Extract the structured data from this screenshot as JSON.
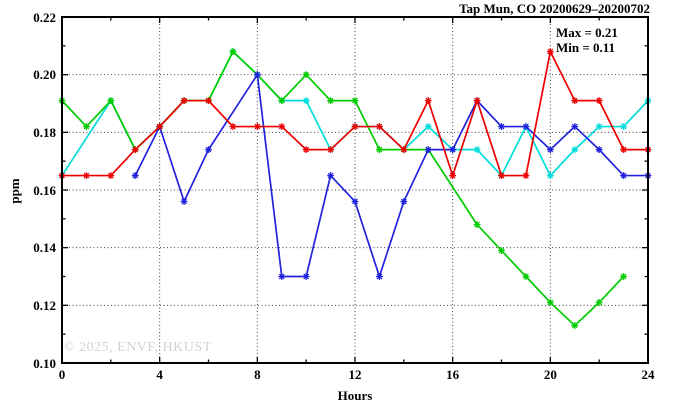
{
  "title": "Tap Mun, CO 20200629–20200702",
  "annotation": {
    "max_label": "Max = 0.21",
    "min_label": "Min = 0.11"
  },
  "watermark": "© 2025, ENVF, HKUST",
  "chart_data": {
    "type": "line",
    "title": "Tap Mun, CO 20200629–20200702",
    "xlabel": "Hours",
    "ylabel": "ppm",
    "xlim": [
      0,
      24
    ],
    "ylim": [
      0.1,
      0.22
    ],
    "x_major_ticks": [
      0,
      4,
      8,
      12,
      16,
      20,
      24
    ],
    "x_minor_ticks": [
      2,
      6,
      10,
      14,
      18,
      22
    ],
    "y_major_ticks": [
      0.1,
      0.12,
      0.14,
      0.16,
      0.18,
      0.2,
      0.22
    ],
    "y_minor_ticks": [
      0.11,
      0.13,
      0.15,
      0.17,
      0.19,
      0.21
    ],
    "grid": true,
    "legend": "none",
    "max": 0.21,
    "min": 0.11,
    "x": [
      0,
      1,
      2,
      3,
      4,
      5,
      6,
      7,
      8,
      9,
      10,
      11,
      12,
      13,
      14,
      15,
      16,
      17,
      18,
      19,
      20,
      21,
      22,
      23,
      24
    ],
    "series": [
      {
        "name": "cyan-series",
        "color": "#00dddd",
        "values": [
          0.165,
          null,
          0.191,
          0.174,
          0.182,
          0.191,
          0.191,
          0.208,
          0.2,
          0.191,
          0.191,
          0.174,
          0.182,
          0.182,
          0.174,
          0.182,
          0.174,
          0.174,
          0.165,
          0.182,
          0.165,
          0.174,
          0.182,
          0.182,
          0.191
        ]
      },
      {
        "name": "green-series",
        "color": "#00cc00",
        "values": [
          0.191,
          0.182,
          0.191,
          0.174,
          0.182,
          0.191,
          0.191,
          0.208,
          0.2,
          0.191,
          0.2,
          0.191,
          0.191,
          0.174,
          0.174,
          0.174,
          null,
          0.148,
          0.139,
          0.13,
          0.121,
          0.113,
          0.121,
          0.13,
          null
        ]
      },
      {
        "name": "blue-series",
        "color": "#2222dd",
        "values": [
          null,
          null,
          null,
          0.165,
          0.182,
          0.156,
          0.174,
          null,
          0.2,
          0.13,
          0.13,
          0.165,
          0.156,
          0.13,
          0.156,
          0.174,
          0.174,
          0.191,
          0.182,
          0.182,
          0.174,
          0.182,
          0.174,
          0.165,
          0.165
        ]
      },
      {
        "name": "red-series",
        "color": "#ee0000",
        "values": [
          0.165,
          0.165,
          0.165,
          0.174,
          0.182,
          0.191,
          0.191,
          0.182,
          0.182,
          0.182,
          0.174,
          0.174,
          0.182,
          0.182,
          0.174,
          0.191,
          0.165,
          0.191,
          0.165,
          0.165,
          0.208,
          0.191,
          0.191,
          0.174,
          0.174
        ]
      }
    ]
  }
}
